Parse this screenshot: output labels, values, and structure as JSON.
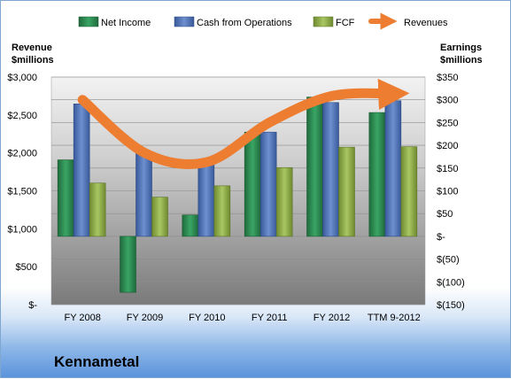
{
  "chart_data": {
    "type": "bar",
    "company": "Kennametal",
    "categories": [
      "FY 2008",
      "FY 2009",
      "FY 2010",
      "FY 2011",
      "FY 2012",
      "TTM 9-2012"
    ],
    "series": [
      {
        "name": "Net Income",
        "axis": "right",
        "color": "#2e8b57",
        "values": [
          168,
          -123,
          47,
          229,
          306,
          272
        ]
      },
      {
        "name": "Cash from Operations",
        "axis": "right",
        "color": "#4f72b8",
        "values": [
          291,
          186,
          165,
          229,
          294,
          298
        ]
      },
      {
        "name": "FCF",
        "axis": "right",
        "color": "#93b34a",
        "values": [
          117,
          86,
          111,
          151,
          196,
          197
        ]
      },
      {
        "name": "Revenues",
        "axis": "left",
        "color": "#ed7d31",
        "type": "line",
        "values": [
          2700,
          2000,
          1880,
          2400,
          2750,
          2780
        ]
      }
    ],
    "left_axis": {
      "title_line1": "Revenue",
      "title_line2": "$millions",
      "range": [
        0,
        3000
      ],
      "ticks": [
        0,
        500,
        1000,
        1500,
        2000,
        2500,
        3000
      ],
      "tick_labels": [
        "$-",
        "$500",
        "$1,000",
        "$1,500",
        "$2,000",
        "$2,500",
        "$3,000"
      ]
    },
    "right_axis": {
      "title_line1": "Earnings",
      "title_line2": "$millions",
      "range": [
        -150,
        350
      ],
      "ticks": [
        350,
        300,
        250,
        200,
        150,
        100,
        50,
        0,
        -50,
        -100,
        -150
      ],
      "tick_labels": [
        "$350",
        "$300",
        "$250",
        "$200",
        "$150",
        "$100",
        "$50",
        "$-",
        "$(50)",
        "$(100)",
        "$(150)"
      ]
    },
    "legend_position": "top",
    "grid": true
  }
}
